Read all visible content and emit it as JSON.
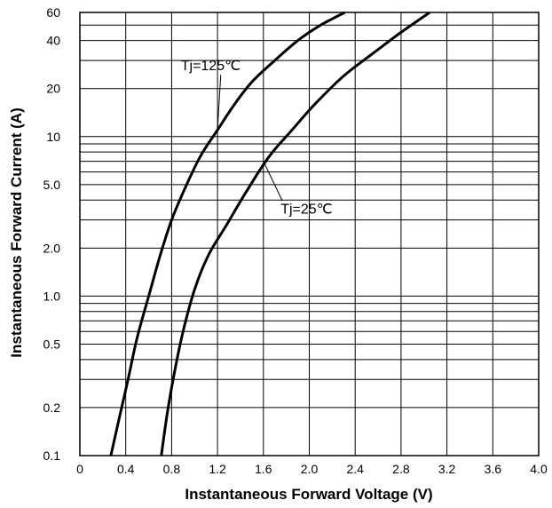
{
  "chart_data": {
    "type": "line",
    "xlabel": "Instantaneous Forward Voltage (V)",
    "ylabel": "Instantaneous Forward Current (A)",
    "xlim": [
      0,
      4.0
    ],
    "ylim": [
      0.1,
      60
    ],
    "yscale": "log",
    "grid": true,
    "x_ticks": [
      "0",
      "0.4",
      "0.8",
      "1.2",
      "1.6",
      "2.0",
      "2.4",
      "2.8",
      "3.2",
      "3.6",
      "4.0"
    ],
    "y_ticks": [
      {
        "value": 0.1,
        "label": "0.1"
      },
      {
        "value": 0.2,
        "label": "0.2"
      },
      {
        "value": 0.5,
        "label": "0.5"
      },
      {
        "value": 1,
        "label": "1.0"
      },
      {
        "value": 2,
        "label": "2.0"
      },
      {
        "value": 5,
        "label": "5.0"
      },
      {
        "value": 10,
        "label": "10"
      },
      {
        "value": 20,
        "label": "20"
      },
      {
        "value": 40,
        "label": "40"
      },
      {
        "value": 60,
        "label": "60"
      }
    ],
    "series": [
      {
        "name": "Tj=125℃",
        "x": [
          0.27,
          0.35,
          0.42,
          0.5,
          0.6,
          0.7,
          0.8,
          0.92,
          1.05,
          1.2,
          1.35,
          1.5,
          1.7,
          1.9,
          2.1,
          2.31
        ],
        "y": [
          0.1,
          0.18,
          0.3,
          0.55,
          1.0,
          1.8,
          3.0,
          4.8,
          7.5,
          11,
          16,
          22,
          30,
          40,
          50,
          60
        ]
      },
      {
        "name": "Tj=25℃",
        "x": [
          0.71,
          0.76,
          0.82,
          0.9,
          1.0,
          1.12,
          1.28,
          1.45,
          1.65,
          1.85,
          2.05,
          2.3,
          2.55,
          2.8,
          3.05
        ],
        "y": [
          0.1,
          0.18,
          0.32,
          0.6,
          1.1,
          1.8,
          2.8,
          4.5,
          7.5,
          11,
          16,
          24,
          33,
          45,
          60
        ]
      }
    ],
    "annotations": [
      {
        "text": "Tj=125℃",
        "series": 0,
        "at": {
          "x": 0.88,
          "y": 26
        },
        "pointer": {
          "x": 1.2,
          "y": 11
        }
      },
      {
        "text": "Tj=25℃",
        "series": 1,
        "at": {
          "x": 1.75,
          "y": 3.3
        },
        "pointer": {
          "x": 1.6,
          "y": 7
        }
      }
    ]
  }
}
